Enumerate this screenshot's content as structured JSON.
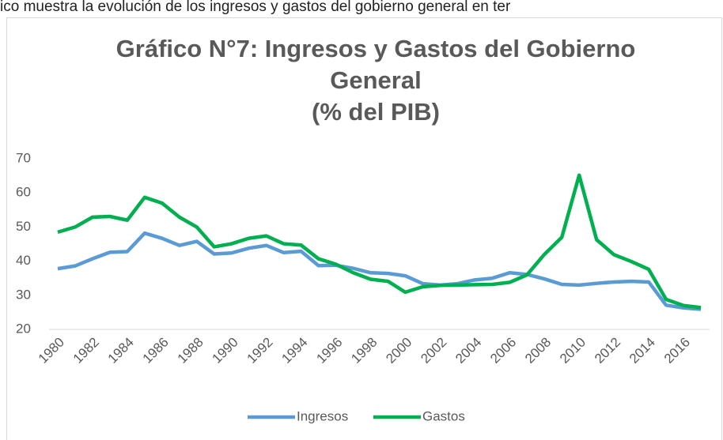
{
  "context_text": "ico muestra la evolución de los ingresos y gastos del gobierno general en ter",
  "chart_data": {
    "type": "line",
    "title": [
      "Gráfico N°7: Ingresos y Gastos del Gobierno",
      "General",
      "(% del PIB)"
    ],
    "x": [
      1980,
      1981,
      1982,
      1983,
      1984,
      1985,
      1986,
      1987,
      1988,
      1989,
      1990,
      1991,
      1992,
      1993,
      1994,
      1995,
      1996,
      1997,
      1998,
      1999,
      2000,
      2001,
      2002,
      2003,
      2004,
      2005,
      2006,
      2007,
      2008,
      2009,
      2010,
      2011,
      2012,
      2013,
      2014,
      2015,
      2016,
      2017
    ],
    "xlim": [
      1979.5,
      2017.5
    ],
    "xticks": [
      1980,
      1982,
      1984,
      1986,
      1988,
      1990,
      1992,
      1994,
      1996,
      1998,
      2000,
      2002,
      2004,
      2006,
      2008,
      2010,
      2012,
      2014,
      2016
    ],
    "ylim": [
      20,
      70
    ],
    "yticks": [
      20,
      30,
      40,
      50,
      60,
      70
    ],
    "grid": false,
    "legend": "bottom",
    "series": [
      {
        "name": "Ingresos",
        "color": "#5b9bd5",
        "values": [
          37.8,
          38.6,
          40.7,
          42.6,
          42.8,
          48.2,
          46.7,
          44.6,
          45.8,
          42.1,
          42.4,
          43.8,
          44.6,
          42.5,
          42.9,
          38.7,
          38.8,
          37.9,
          36.6,
          36.4,
          35.7,
          33.4,
          33.0,
          33.4,
          34.5,
          35.0,
          36.6,
          36.1,
          34.8,
          33.2,
          33.0,
          33.5,
          33.9,
          34.1,
          33.9,
          27.1,
          26.3,
          25.9
        ]
      },
      {
        "name": "Gastos",
        "color": "#00b050",
        "values": [
          48.5,
          50.0,
          52.9,
          53.1,
          52.0,
          58.7,
          57.0,
          52.9,
          50.0,
          44.2,
          45.1,
          46.7,
          47.4,
          45.1,
          44.7,
          40.7,
          39.1,
          36.6,
          34.7,
          34.1,
          30.9,
          32.5,
          32.9,
          33.0,
          33.1,
          33.2,
          33.8,
          36.0,
          42.0,
          47.0,
          65.2,
          46.3,
          41.9,
          39.9,
          37.6,
          28.8,
          27.0,
          26.4
        ]
      }
    ]
  }
}
